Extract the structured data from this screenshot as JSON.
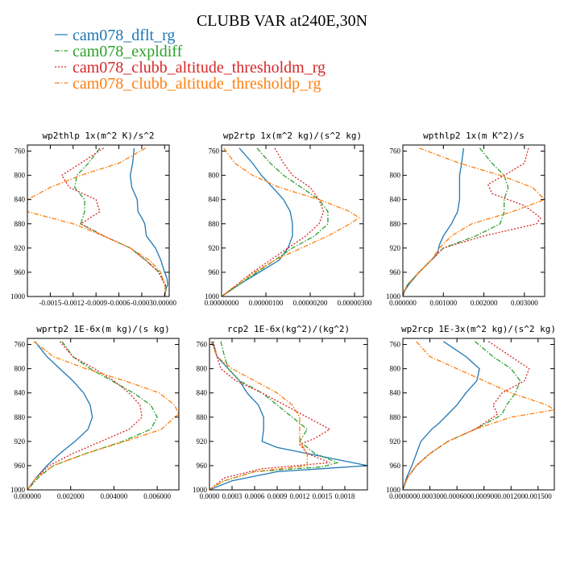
{
  "figure": {
    "title": "CLUBB VAR at240E,30N",
    "legend": [
      {
        "name": "cam078_dflt_rg",
        "color": "#1f77b4",
        "dash": "solid"
      },
      {
        "name": "cam078_expldiff",
        "color": "#2ca02c",
        "dash": "dashdot"
      },
      {
        "name": "cam078_clubb_altitude_thresholdm_rg",
        "color": "#d62728",
        "dash": "dotted"
      },
      {
        "name": "cam078_clubb_altitude_thresholdp_rg",
        "color": "#ff7f0e",
        "dash": "dashdot"
      }
    ]
  },
  "chart_data": [
    {
      "type": "line",
      "title": "wp2thlp  1x(m^2 K)/s^2",
      "xlim": [
        -0.0018,
        6e-05
      ],
      "ylim": [
        1000,
        750
      ],
      "xticks": [
        -0.0015,
        -0.0012,
        -0.0009,
        -0.0006,
        -0.0003,
        0.0
      ],
      "xtick_labels": [
        "-0.0015",
        "-0.0012",
        "-0.0009",
        "-0.0006",
        "-0.0003",
        "0.00000"
      ],
      "yticks": [
        760,
        800,
        840,
        880,
        920,
        960,
        1000
      ],
      "series": [
        {
          "y": [
            755,
            780,
            800,
            820,
            840,
            860,
            870,
            880,
            900,
            920,
            940,
            960,
            970,
            980,
            990,
            1000
          ],
          "x": [
            -0.0004,
            -0.00042,
            -0.00045,
            -0.00043,
            -0.00036,
            -0.00035,
            -0.0003,
            -0.00026,
            -0.00024,
            -0.00012,
            -5e-05,
            0.0,
            3e-05,
            4e-05,
            1e-05,
            0.0
          ]
        },
        {
          "y": [
            755,
            780,
            800,
            820,
            840,
            860,
            880,
            900,
            920,
            940,
            960,
            980,
            990,
            1000
          ],
          "x": [
            -0.00085,
            -0.001,
            -0.00115,
            -0.00118,
            -0.00105,
            -0.00105,
            -0.0011,
            -0.0008,
            -0.00045,
            -0.00025,
            -7e-05,
            1e-05,
            2e-05,
            0.0
          ]
        },
        {
          "y": [
            755,
            780,
            800,
            820,
            840,
            860,
            880,
            900,
            920,
            940,
            960,
            980,
            990,
            1000
          ],
          "x": [
            -0.0008,
            -0.0011,
            -0.00135,
            -0.00125,
            -0.0009,
            -0.00085,
            -0.0011,
            -0.0008,
            -0.00045,
            -0.00025,
            -8e-05,
            0.0,
            1e-05,
            0.0
          ]
        },
        {
          "y": [
            755,
            780,
            800,
            820,
            840,
            860,
            880,
            900,
            920,
            940,
            960,
            980,
            990,
            1000
          ],
          "x": [
            -0.00025,
            -0.0006,
            -0.0011,
            -0.0015,
            -0.0018,
            -0.0018,
            -0.0012,
            -0.0008,
            -0.00045,
            -0.0002,
            -5e-05,
            0.0,
            1e-05,
            0.0
          ]
        }
      ]
    },
    {
      "type": "line",
      "title": "wp2rtp  1x(m^2 kg)/(s^2 kg)",
      "xlim": [
        0,
        3.2e-06
      ],
      "ylim": [
        1000,
        750
      ],
      "xticks": [
        0.0,
        1e-06,
        2e-06,
        3e-06
      ],
      "xtick_labels": [
        "0.00000000",
        "0.00000100",
        "0.00000200",
        "0.00000300"
      ],
      "yticks": [
        760,
        800,
        840,
        880,
        920,
        960,
        1000
      ],
      "series": [
        {
          "y": [
            755,
            780,
            800,
            820,
            840,
            860,
            880,
            900,
            920,
            940,
            960,
            980,
            1000
          ],
          "x": [
            4e-07,
            7e-07,
            9e-07,
            1.15e-06,
            1.4e-06,
            1.55e-06,
            1.6e-06,
            1.6e-06,
            1.5e-06,
            1.3e-06,
            8.5e-07,
            4e-07,
            0.0
          ]
        },
        {
          "y": [
            755,
            780,
            800,
            820,
            840,
            860,
            880,
            900,
            920,
            940,
            960,
            980,
            1000
          ],
          "x": [
            8e-07,
            1.1e-06,
            1.4e-06,
            1.8e-06,
            2.2e-06,
            2.4e-06,
            2.4e-06,
            2.1e-06,
            1.6e-06,
            1.2e-06,
            8e-07,
            4e-07,
            0.0
          ]
        },
        {
          "y": [
            755,
            780,
            800,
            820,
            840,
            860,
            880,
            900,
            920,
            940,
            960,
            980,
            1000
          ],
          "x": [
            1.2e-06,
            1.4e-06,
            1.6e-06,
            2e-06,
            2.2e-06,
            2.3e-06,
            2.2e-06,
            1.9e-06,
            1.5e-06,
            1.1e-06,
            7e-07,
            3.5e-07,
            0.0
          ]
        },
        {
          "y": [
            755,
            780,
            800,
            820,
            840,
            860,
            870,
            880,
            900,
            920,
            940,
            960,
            980,
            1000
          ],
          "x": [
            5e-08,
            3e-07,
            7e-07,
            1.3e-06,
            2.2e-06,
            2.9e-06,
            3.1e-06,
            2.9e-06,
            2.4e-06,
            1.8e-06,
            1.2e-06,
            7.5e-07,
            3.5e-07,
            0.0
          ]
        }
      ]
    },
    {
      "type": "line",
      "title": "wpthlp2  1x(m K^2)/s",
      "xlim": [
        0,
        0.0035
      ],
      "ylim": [
        1000,
        750
      ],
      "xticks": [
        0.0,
        0.001,
        0.002,
        0.003
      ],
      "xtick_labels": [
        "0.000000",
        "0.001000",
        "0.002000",
        "0.003000"
      ],
      "yticks": [
        760,
        800,
        840,
        880,
        920,
        960,
        1000
      ],
      "series": [
        {
          "y": [
            755,
            780,
            800,
            820,
            840,
            860,
            880,
            900,
            915,
            930,
            940,
            960,
            980,
            990,
            1000
          ],
          "x": [
            0.0015,
            0.00145,
            0.0014,
            0.0014,
            0.0014,
            0.00135,
            0.0012,
            0.001,
            0.0009,
            0.00085,
            0.0007,
            0.0004,
            0.00015,
            5e-05,
            0.0
          ]
        },
        {
          "y": [
            755,
            780,
            800,
            820,
            840,
            860,
            880,
            900,
            920,
            940,
            960,
            980,
            990,
            1000
          ],
          "x": [
            0.0019,
            0.0022,
            0.0025,
            0.0026,
            0.0025,
            0.0025,
            0.0024,
            0.0018,
            0.001,
            0.0007,
            0.0004,
            0.00012,
            4e-05,
            0.0
          ]
        },
        {
          "y": [
            755,
            780,
            800,
            815,
            830,
            850,
            870,
            880,
            900,
            920,
            940,
            960,
            980,
            990,
            1000
          ],
          "x": [
            0.0031,
            0.003,
            0.0025,
            0.0021,
            0.0022,
            0.003,
            0.0034,
            0.0033,
            0.002,
            0.001,
            0.0007,
            0.0004,
            0.00012,
            4e-05,
            0.0
          ]
        },
        {
          "y": [
            755,
            780,
            800,
            820,
            840,
            860,
            880,
            900,
            920,
            940,
            960,
            980,
            990,
            1000
          ],
          "x": [
            0.0004,
            0.0014,
            0.0024,
            0.0032,
            0.0035,
            0.0027,
            0.0017,
            0.0012,
            0.0009,
            0.0007,
            0.0004,
            0.00012,
            4e-05,
            0.0
          ]
        }
      ]
    },
    {
      "type": "line",
      "title": "wprtp2  1E-6x(m kg)/(s kg)",
      "xlim": [
        0,
        0.007
      ],
      "ylim": [
        1000,
        750
      ],
      "xticks": [
        0.0,
        0.002,
        0.004,
        0.006
      ],
      "xtick_labels": [
        "0.000000",
        "0.002000",
        "0.004000",
        "0.006000"
      ],
      "yticks": [
        760,
        800,
        840,
        880,
        920,
        960,
        1000
      ],
      "series": [
        {
          "y": [
            755,
            780,
            800,
            820,
            840,
            860,
            880,
            900,
            920,
            940,
            960,
            980,
            1000
          ],
          "x": [
            0.00035,
            0.0009,
            0.0015,
            0.0021,
            0.0026,
            0.0029,
            0.003,
            0.0028,
            0.0022,
            0.0015,
            0.0009,
            0.0004,
            0.0
          ]
        },
        {
          "y": [
            755,
            780,
            800,
            820,
            840,
            860,
            880,
            900,
            920,
            940,
            960,
            980,
            1000
          ],
          "x": [
            0.0016,
            0.0021,
            0.0029,
            0.0039,
            0.0049,
            0.0057,
            0.006,
            0.0057,
            0.0044,
            0.0027,
            0.0012,
            0.0005,
            0.0
          ]
        },
        {
          "y": [
            755,
            780,
            800,
            820,
            840,
            860,
            880,
            900,
            920,
            940,
            960,
            980,
            1000
          ],
          "x": [
            0.0015,
            0.0021,
            0.0031,
            0.004,
            0.0047,
            0.0052,
            0.0053,
            0.0047,
            0.0034,
            0.0021,
            0.001,
            0.0004,
            0.0
          ]
        },
        {
          "y": [
            755,
            780,
            800,
            820,
            840,
            860,
            875,
            880,
            900,
            920,
            940,
            960,
            980,
            1000
          ],
          "x": [
            0.0003,
            0.0012,
            0.0027,
            0.0045,
            0.0061,
            0.0068,
            0.007,
            0.0068,
            0.0062,
            0.0045,
            0.0027,
            0.0012,
            0.0004,
            0.0
          ]
        }
      ]
    },
    {
      "type": "line",
      "title": "rcp2  1E-6x(kg^2)/(kg^2)",
      "xlim": [
        0,
        0.0021
      ],
      "ylim": [
        1000,
        750
      ],
      "xticks": [
        0.0,
        0.0003,
        0.0006,
        0.0009,
        0.0012,
        0.0015,
        0.0018
      ],
      "xtick_labels": [
        "0.0000",
        "0.0003",
        "0.0006",
        "0.0009",
        "0.0012",
        "0.0015",
        "0.0018"
      ],
      "yticks": [
        760,
        800,
        840,
        880,
        920,
        960,
        1000
      ],
      "series": [
        {
          "y": [
            755,
            780,
            800,
            820,
            840,
            860,
            880,
            900,
            920,
            930,
            945,
            960,
            970,
            985,
            995,
            1000
          ],
          "x": [
            4e-05,
            0.0001,
            0.00025,
            0.0004,
            0.0005,
            0.00065,
            0.00072,
            0.00072,
            0.0007,
            0.0009,
            0.0015,
            0.0021,
            0.0009,
            0.0003,
            0.0001,
            0.0
          ]
        },
        {
          "y": [
            755,
            780,
            800,
            820,
            840,
            860,
            880,
            900,
            920,
            940,
            955,
            962,
            970,
            985,
            995,
            1000
          ],
          "x": [
            0.00015,
            0.0002,
            0.00025,
            0.0004,
            0.0007,
            0.0009,
            0.0011,
            0.0013,
            0.0012,
            0.0014,
            0.0017,
            0.0015,
            0.0006,
            0.0002,
            5e-05,
            0.0
          ]
        },
        {
          "y": [
            755,
            780,
            800,
            820,
            840,
            860,
            880,
            900,
            915,
            925,
            940,
            955,
            965,
            980,
            995,
            1000
          ],
          "x": [
            5e-05,
            0.0001,
            0.00015,
            0.00035,
            0.0007,
            0.001,
            0.0013,
            0.0016,
            0.0014,
            0.0012,
            0.0013,
            0.0016,
            0.0007,
            0.0002,
            5e-05,
            0.0
          ]
        },
        {
          "y": [
            755,
            780,
            800,
            820,
            840,
            860,
            880,
            900,
            920,
            940,
            960,
            970,
            985,
            995,
            1000
          ],
          "x": [
            2e-05,
            0.0001,
            0.0003,
            0.0006,
            0.0009,
            0.0011,
            0.0012,
            0.0012,
            0.0012,
            0.0013,
            0.0013,
            0.0006,
            0.0002,
            5e-05,
            0.0
          ]
        }
      ]
    },
    {
      "type": "line",
      "title": "wp2rcp  1E-3x(m^2 kg)/(s^2 kg)",
      "xlim": [
        0,
        0.00168
      ],
      "ylim": [
        1000,
        750
      ],
      "xticks": [
        0.0,
        0.0003,
        0.0006,
        0.0009,
        0.0012,
        0.0015
      ],
      "xtick_labels": [
        "0.000000",
        "0.000300",
        "0.000600",
        "0.000900",
        "0.001200",
        "0.001500"
      ],
      "yticks": [
        760,
        800,
        840,
        880,
        920,
        960,
        1000
      ],
      "series": [
        {
          "y": [
            755,
            780,
            800,
            820,
            840,
            860,
            875,
            890,
            900,
            920,
            940,
            960,
            980,
            1000
          ],
          "x": [
            0.00045,
            0.0007,
            0.00085,
            0.00082,
            0.0007,
            0.0006,
            0.0005,
            0.0004,
            0.00032,
            0.0002,
            0.00015,
            0.0001,
            4e-05,
            0.0
          ]
        },
        {
          "y": [
            755,
            780,
            800,
            820,
            840,
            860,
            875,
            880,
            900,
            920,
            940,
            960,
            980,
            1000
          ],
          "x": [
            0.0008,
            0.001,
            0.0012,
            0.0013,
            0.00125,
            0.00115,
            0.0011,
            0.00105,
            0.0008,
            0.0005,
            0.0003,
            0.00015,
            5e-05,
            0.0
          ]
        },
        {
          "y": [
            755,
            780,
            800,
            820,
            840,
            860,
            875,
            880,
            900,
            920,
            940,
            960,
            980,
            1000
          ],
          "x": [
            0.00095,
            0.0012,
            0.0014,
            0.00135,
            0.0011,
            0.001,
            0.00105,
            0.001,
            0.0008,
            0.0005,
            0.0003,
            0.00015,
            5e-05,
            0.0
          ]
        },
        {
          "y": [
            755,
            780,
            800,
            820,
            840,
            860,
            868,
            880,
            900,
            920,
            940,
            960,
            980,
            1000
          ],
          "x": [
            0.00015,
            0.0003,
            0.0006,
            0.0009,
            0.0012,
            0.0016,
            0.00168,
            0.0012,
            0.0008,
            0.0005,
            0.0003,
            0.00015,
            5e-05,
            0.0
          ]
        }
      ]
    }
  ]
}
